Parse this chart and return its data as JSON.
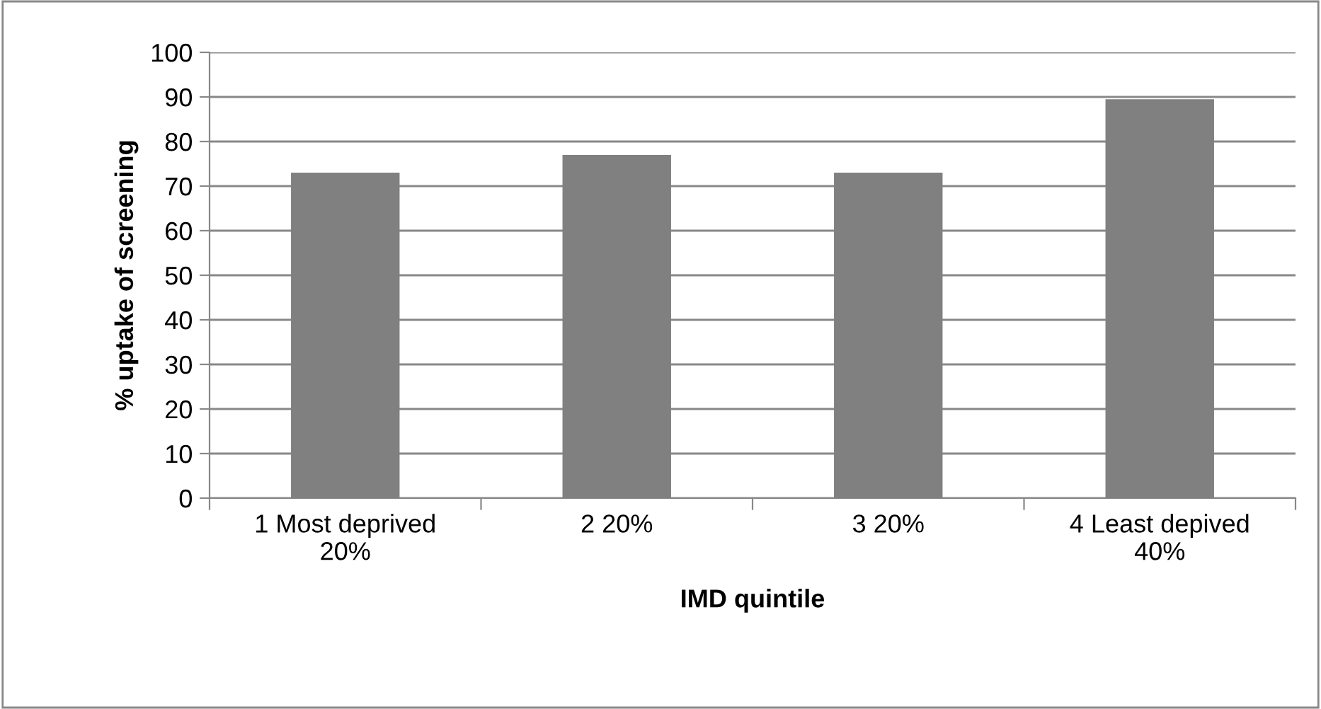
{
  "chart_data": {
    "type": "bar",
    "xlabel": "IMD quintile",
    "ylabel": "% uptake of screening",
    "categories": [
      "1 Most deprived\n20%",
      "2 20%",
      "3 20%",
      "4 Least depived\n40%"
    ],
    "values": [
      73,
      77,
      73,
      89.5
    ],
    "color": "#808080",
    "ylim": [
      0,
      100
    ],
    "yticks": [
      0,
      10,
      20,
      30,
      40,
      50,
      60,
      70,
      80,
      90,
      100
    ],
    "grid": "y"
  }
}
